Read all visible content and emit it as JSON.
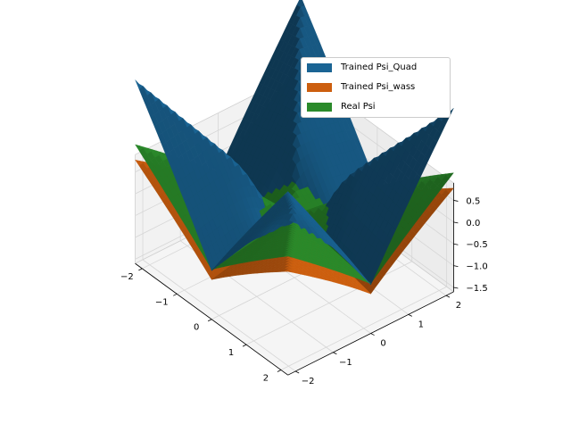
{
  "chart_data": {
    "type": "surface3d",
    "title": "",
    "xlabel": "",
    "ylabel": "",
    "zlabel": "",
    "x_ticks": [
      "−2",
      "−1",
      "0",
      "1",
      "2"
    ],
    "y_ticks": [
      "−2",
      "−1",
      "0",
      "1",
      "2"
    ],
    "z_ticks": [
      "0.5",
      "0.0",
      "−0.5",
      "−1.0",
      "−1.5"
    ],
    "xlim": [
      -2.2,
      2.2
    ],
    "ylim": [
      -2.2,
      2.2
    ],
    "zlim": [
      -1.6,
      0.9
    ],
    "grid": true,
    "legend_position": "top-right",
    "series": [
      {
        "name": "Trained Psi_Quad",
        "color": "#1a6494"
      },
      {
        "name": "Trained Psi_wass",
        "color": "#cc5e0e"
      },
      {
        "name": "Real Psi",
        "color": "#2a8a2a"
      }
    ]
  }
}
